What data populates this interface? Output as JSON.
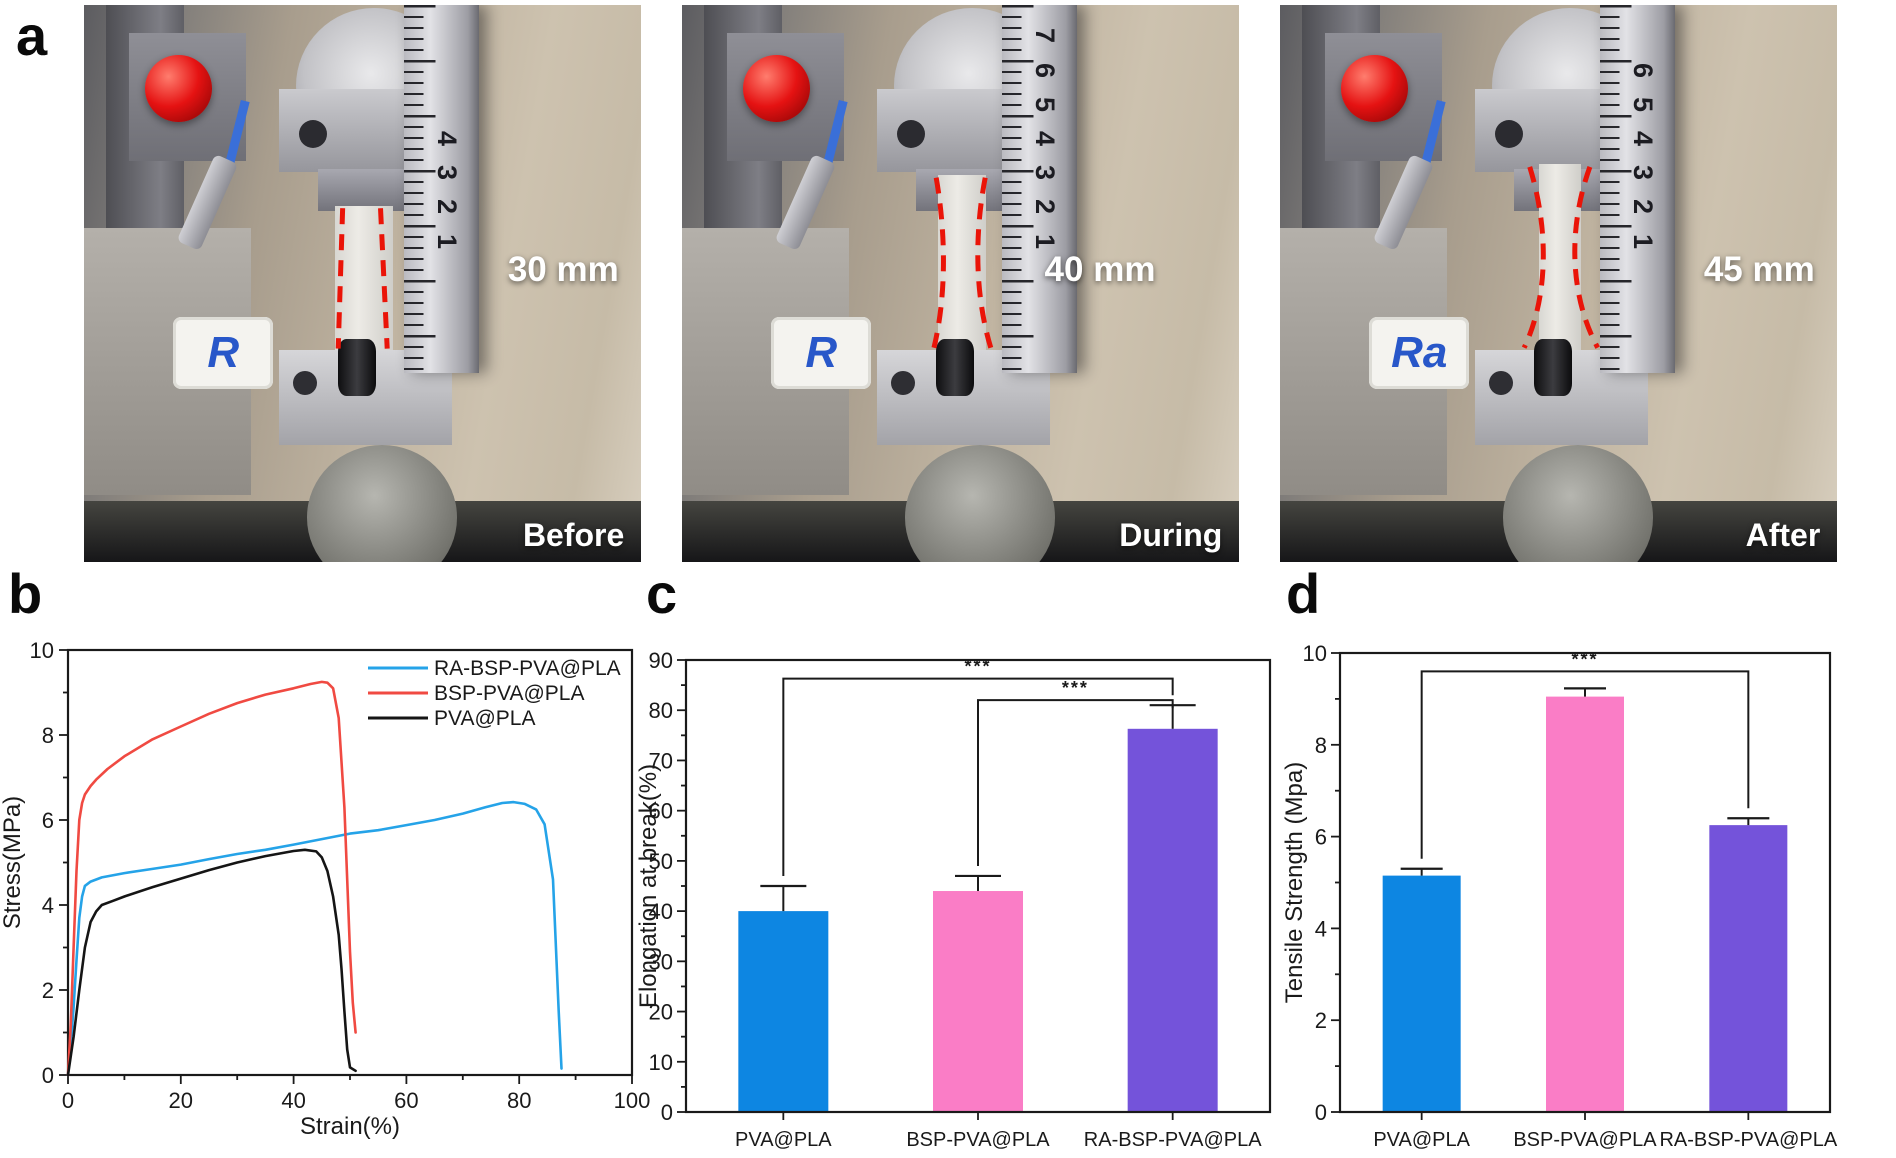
{
  "panel_a": {
    "label": "a",
    "photos": [
      {
        "measurement": "30 mm",
        "caption": "Before",
        "logo": "R",
        "sample_state": "straight",
        "ruler_numbers": [
          "4",
          "3",
          "2",
          "1"
        ]
      },
      {
        "measurement": "40 mm",
        "caption": "During",
        "logo": "R",
        "sample_state": "necking",
        "ruler_numbers": [
          "7",
          "6",
          "5",
          "4",
          "3",
          "2",
          "1"
        ]
      },
      {
        "measurement": "45 mm",
        "caption": "After",
        "logo": "Ra",
        "sample_state": "necked",
        "ruler_numbers": [
          "6",
          "5",
          "4",
          "3",
          "2",
          "1"
        ]
      }
    ]
  },
  "panel_b": {
    "label": "b"
  },
  "panel_c": {
    "label": "c"
  },
  "panel_d": {
    "label": "d"
  },
  "chart_data": [
    {
      "id": "b",
      "type": "line",
      "title": "",
      "xlabel": "Strain(%)",
      "ylabel": "Stress(MPa)",
      "xlim": [
        0,
        100
      ],
      "ylim": [
        0,
        10
      ],
      "xticks": [
        0,
        20,
        40,
        60,
        80,
        100
      ],
      "yticks": [
        0,
        2,
        4,
        6,
        8,
        10
      ],
      "x_minor_step": 10,
      "y_minor_step": 1,
      "grid": false,
      "legend_position": "top-right",
      "series": [
        {
          "name": "RA-BSP-PVA@PLA",
          "color": "#25a3e8",
          "x": [
            0,
            0.5,
            1,
            1.5,
            2,
            2.5,
            3,
            4,
            6,
            10,
            15,
            20,
            25,
            30,
            35,
            40,
            45,
            50,
            55,
            60,
            65,
            70,
            74,
            77,
            79,
            81,
            83,
            84.5,
            86,
            87,
            87.5
          ],
          "y": [
            0,
            0.7,
            1.6,
            2.7,
            3.7,
            4.2,
            4.45,
            4.55,
            4.65,
            4.75,
            4.85,
            4.95,
            5.08,
            5.2,
            5.3,
            5.42,
            5.55,
            5.68,
            5.76,
            5.88,
            6.0,
            6.15,
            6.3,
            6.4,
            6.42,
            6.38,
            6.25,
            5.9,
            4.6,
            1.5,
            0.15
          ]
        },
        {
          "name": "BSP-PVA@PLA",
          "color": "#f04a42",
          "x": [
            0,
            0.5,
            1,
            1.5,
            2,
            2.5,
            3,
            4,
            5,
            7,
            10,
            15,
            20,
            25,
            30,
            35,
            40,
            43,
            45,
            46,
            47,
            48,
            49,
            49.5,
            50,
            50.5,
            51
          ],
          "y": [
            0,
            1.2,
            3.0,
            4.8,
            6.0,
            6.4,
            6.6,
            6.8,
            6.95,
            7.2,
            7.5,
            7.9,
            8.2,
            8.5,
            8.75,
            8.95,
            9.1,
            9.2,
            9.25,
            9.23,
            9.1,
            8.4,
            6.3,
            4.6,
            2.9,
            1.7,
            1.0
          ]
        },
        {
          "name": "PVA@PLA",
          "color": "#151515",
          "x": [
            0,
            1,
            2,
            3,
            4,
            5,
            6,
            8,
            10,
            15,
            20,
            25,
            30,
            35,
            40,
            42,
            44,
            45,
            46,
            47,
            48,
            48.5,
            49,
            49.5,
            50,
            51
          ],
          "y": [
            0,
            0.9,
            2.0,
            3.0,
            3.6,
            3.85,
            4.0,
            4.1,
            4.2,
            4.42,
            4.62,
            4.82,
            5.0,
            5.15,
            5.27,
            5.3,
            5.26,
            5.12,
            4.8,
            4.2,
            3.3,
            2.5,
            1.5,
            0.6,
            0.18,
            0.1
          ]
        }
      ]
    },
    {
      "id": "c",
      "type": "bar",
      "xlabel": "",
      "ylabel": "Elongation at break(%)",
      "categories": [
        "PVA@PLA",
        "BSP-PVA@PLA",
        "RA-BSP-PVA@PLA"
      ],
      "values": [
        40,
        44,
        76.3
      ],
      "errors": [
        5,
        3,
        4.7
      ],
      "colors": [
        "#0d86e2",
        "#fa7dc6",
        "#7453da"
      ],
      "ylim": [
        0,
        90
      ],
      "yticks": [
        0,
        10,
        20,
        30,
        40,
        50,
        60,
        70,
        80,
        90
      ],
      "y_minor_step": 5,
      "grid": false,
      "significance": [
        {
          "from": 0,
          "to": 2,
          "level": 86.3,
          "label": "***"
        },
        {
          "from": 1,
          "to": 2,
          "level": 82,
          "label": "***"
        }
      ]
    },
    {
      "id": "d",
      "type": "bar",
      "xlabel": "",
      "ylabel": "Tensile Strength (Mpa)",
      "categories": [
        "PVA@PLA",
        "BSP-PVA@PLA",
        "RA-BSP-PVA@PLA"
      ],
      "values": [
        5.15,
        9.05,
        6.25
      ],
      "errors": [
        0.15,
        0.18,
        0.15
      ],
      "colors": [
        "#0d86e2",
        "#fa7dc6",
        "#7453da"
      ],
      "ylim": [
        0,
        10
      ],
      "yticks": [
        0,
        2,
        4,
        6,
        8,
        10
      ],
      "y_minor_step": 1,
      "grid": false,
      "significance": [
        {
          "from": 0,
          "to": 2,
          "level": 9.6,
          "label": "***"
        }
      ]
    }
  ],
  "colors": {
    "axis": "#1a1a1a",
    "dash_red": "#ea1408",
    "logo_blue": "#2857c9",
    "bar_blue": "#0d86e2",
    "bar_pink": "#fa7dc6",
    "bar_purple": "#7453da"
  }
}
